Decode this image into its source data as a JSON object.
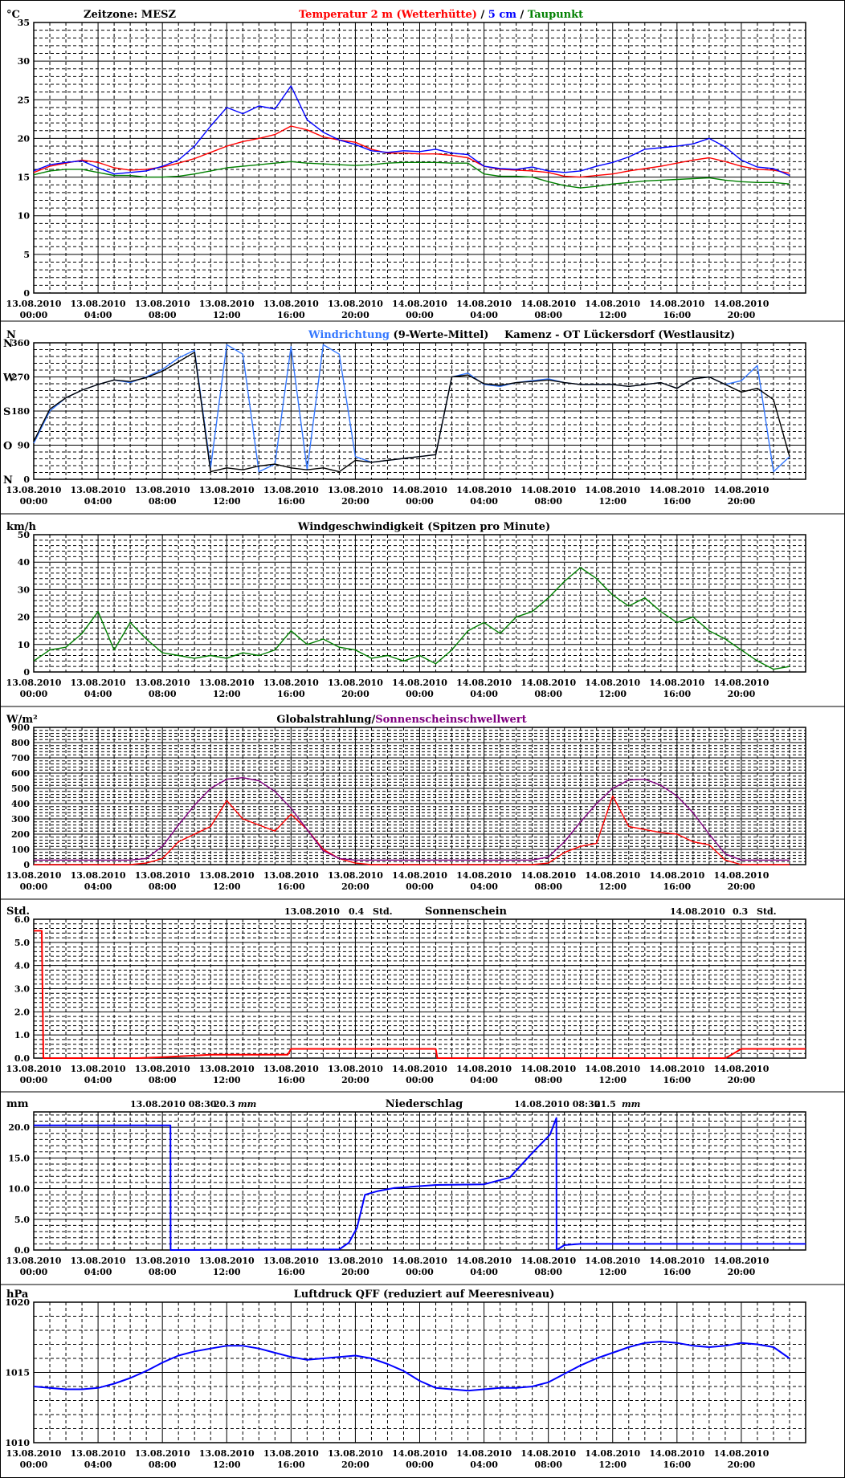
{
  "x_tick_labels": [
    [
      "13.08.2010",
      "00:00"
    ],
    [
      "13.08.2010",
      "04:00"
    ],
    [
      "13.08.2010",
      "08:00"
    ],
    [
      "13.08.2010",
      "12:00"
    ],
    [
      "13.08.2010",
      "16:00"
    ],
    [
      "13.08.2010",
      "20:00"
    ],
    [
      "14.08.2010",
      "00:00"
    ],
    [
      "14.08.2010",
      "04:00"
    ],
    [
      "14.08.2010",
      "08:00"
    ],
    [
      "14.08.2010",
      "12:00"
    ],
    [
      "14.08.2010",
      "16:00"
    ],
    [
      "14.08.2010",
      "20:00"
    ]
  ],
  "chart_data": [
    {
      "type": "line",
      "unit": "°C",
      "title_parts": [
        {
          "text": "Zeitzone: MESZ",
          "color": "#000000"
        },
        {
          "text": "Temperatur 2 m (Wetterhütte)",
          "color": "#ff0000"
        },
        {
          "text": "/",
          "color": "#000000"
        },
        {
          "text": "5 cm",
          "color": "#0000ff"
        },
        {
          "text": "/",
          "color": "#000000"
        },
        {
          "text": "Taupunkt",
          "color": "#008000"
        }
      ],
      "ylim": [
        0,
        35
      ],
      "y_ticks": [
        0,
        5,
        10,
        15,
        20,
        25,
        30,
        35
      ],
      "x": [
        0,
        1,
        2,
        3,
        4,
        5,
        6,
        7,
        8,
        9,
        10,
        11,
        12,
        13,
        14,
        15,
        16,
        17,
        18,
        19,
        20,
        21,
        22,
        23,
        24,
        25,
        26,
        27,
        28,
        29,
        30,
        31,
        32,
        33,
        34,
        35,
        36,
        37,
        38,
        39,
        40,
        41,
        42,
        43,
        44,
        45,
        46,
        47
      ],
      "series": [
        {
          "name": "Temperatur 2 m (Wetterhütte)",
          "color": "#ff0000",
          "values": [
            15.6,
            16.4,
            16.8,
            17.2,
            16.9,
            16.2,
            15.9,
            16.0,
            16.3,
            16.8,
            17.4,
            18.2,
            19.0,
            19.6,
            20.0,
            20.5,
            21.6,
            21.1,
            20.2,
            19.8,
            19.5,
            18.6,
            18.1,
            18.1,
            18.0,
            18.0,
            17.8,
            17.5,
            16.4,
            16.0,
            15.9,
            15.8,
            15.6,
            15.1,
            15.0,
            15.2,
            15.4,
            15.8,
            16.1,
            16.4,
            16.8,
            17.2,
            17.5,
            17.0,
            16.4,
            16.0,
            15.9,
            15.5
          ]
        },
        {
          "name": "5 cm",
          "color": "#0000ff",
          "values": [
            15.8,
            16.6,
            16.9,
            17.1,
            16.2,
            15.4,
            15.6,
            15.8,
            16.4,
            17.2,
            19.0,
            21.6,
            24.0,
            23.2,
            24.2,
            23.8,
            26.8,
            22.4,
            20.8,
            19.8,
            19.2,
            18.4,
            18.2,
            18.4,
            18.3,
            18.6,
            18.1,
            17.9,
            16.4,
            16.1,
            16.0,
            16.3,
            15.8,
            15.6,
            15.8,
            16.4,
            16.9,
            17.6,
            18.6,
            18.8,
            19.0,
            19.3,
            20.0,
            18.9,
            17.2,
            16.3,
            16.1,
            15.2
          ]
        },
        {
          "name": "Taupunkt",
          "color": "#008000",
          "values": [
            15.3,
            15.8,
            16.0,
            16.0,
            15.6,
            15.2,
            15.2,
            15.0,
            15.0,
            15.1,
            15.4,
            15.8,
            16.2,
            16.4,
            16.6,
            16.8,
            17.0,
            16.8,
            16.7,
            16.6,
            16.5,
            16.6,
            16.8,
            16.9,
            16.9,
            16.9,
            16.8,
            16.8,
            15.4,
            15.1,
            15.1,
            15.0,
            14.4,
            13.9,
            13.6,
            13.8,
            14.1,
            14.3,
            14.5,
            14.6,
            14.7,
            14.8,
            14.9,
            14.6,
            14.4,
            14.3,
            14.3,
            14.1
          ]
        }
      ]
    },
    {
      "type": "line",
      "unit": "N",
      "title_parts": [
        {
          "text": "Windrichtung",
          "color": "#3377ff"
        },
        {
          "text": "(9-Werte-Mittel)",
          "color": "#000000"
        },
        {
          "text": "Kamenz - OT Lückersdorf (Westlausitz)",
          "color": "#000000"
        }
      ],
      "ylim": [
        0,
        360
      ],
      "y_ticks": [
        0,
        90,
        180,
        270,
        360
      ],
      "y_dir_labels": [
        {
          "value": 360,
          "text": "N"
        },
        {
          "value": 270,
          "text": "W"
        },
        {
          "value": 180,
          "text": "S"
        },
        {
          "value": 90,
          "text": "O"
        },
        {
          "value": 0,
          "text": "N"
        }
      ],
      "x": [
        0,
        1,
        2,
        3,
        4,
        5,
        6,
        7,
        8,
        9,
        10,
        11,
        12,
        13,
        14,
        15,
        16,
        17,
        18,
        19,
        20,
        21,
        22,
        23,
        24,
        25,
        26,
        27,
        28,
        29,
        30,
        31,
        32,
        33,
        34,
        35,
        36,
        37,
        38,
        39,
        40,
        41,
        42,
        43,
        44,
        45,
        46,
        47
      ],
      "series": [
        {
          "name": "Windrichtung",
          "color": "#3377ff",
          "values": [
            95,
            180,
            215,
            235,
            250,
            262,
            255,
            270,
            290,
            320,
            340,
            30,
            355,
            330,
            20,
            40,
            350,
            25,
            355,
            330,
            60,
            45,
            50,
            55,
            60,
            65,
            270,
            280,
            250,
            245,
            255,
            260,
            265,
            255,
            250,
            250,
            250,
            245,
            250,
            255,
            240,
            265,
            270,
            250,
            260,
            300,
            20,
            60
          ]
        },
        {
          "name": "9-Werte-Mittel",
          "color": "#000000",
          "values": [
            100,
            185,
            215,
            235,
            250,
            262,
            258,
            268,
            285,
            310,
            335,
            20,
            30,
            25,
            35,
            40,
            30,
            25,
            30,
            20,
            50,
            45,
            50,
            55,
            60,
            65,
            270,
            275,
            252,
            248,
            255,
            258,
            262,
            255,
            250,
            250,
            250,
            245,
            250,
            255,
            240,
            265,
            270,
            250,
            230,
            240,
            210,
            60
          ]
        }
      ]
    },
    {
      "type": "line",
      "unit": "km/h",
      "title_parts": [
        {
          "text": "Windgeschwindigkeit (Spitzen pro Minute)",
          "color": "#000000"
        }
      ],
      "ylim": [
        0,
        50
      ],
      "y_ticks": [
        0,
        10,
        20,
        30,
        40,
        50
      ],
      "x": [
        0,
        1,
        2,
        3,
        4,
        5,
        6,
        7,
        8,
        9,
        10,
        11,
        12,
        13,
        14,
        15,
        16,
        17,
        18,
        19,
        20,
        21,
        22,
        23,
        24,
        25,
        26,
        27,
        28,
        29,
        30,
        31,
        32,
        33,
        34,
        35,
        36,
        37,
        38,
        39,
        40,
        41,
        42,
        43,
        44,
        45,
        46,
        47
      ],
      "series": [
        {
          "name": "Windgeschwindigkeit",
          "color": "#008000",
          "values": [
            4,
            8,
            9,
            14,
            22,
            8,
            18,
            12,
            7,
            6,
            5,
            6,
            5,
            7,
            6,
            8,
            15,
            10,
            12,
            9,
            8,
            5,
            6,
            4,
            6,
            3,
            8,
            15,
            18,
            14,
            20,
            22,
            27,
            33,
            38,
            34,
            28,
            24,
            27,
            22,
            18,
            20,
            15,
            12,
            8,
            4,
            1,
            2
          ]
        }
      ]
    },
    {
      "type": "line",
      "unit": "W/m²",
      "title_parts": [
        {
          "text": "Globalstrahlung/",
          "color": "#000000"
        },
        {
          "text": "Sonnenscheinschwellwert",
          "color": "#800080"
        }
      ],
      "ylim": [
        0,
        900
      ],
      "y_ticks": [
        0,
        100,
        200,
        300,
        400,
        500,
        600,
        700,
        800,
        900
      ],
      "x": [
        0,
        1,
        2,
        3,
        4,
        5,
        6,
        7,
        8,
        9,
        10,
        11,
        12,
        13,
        14,
        15,
        16,
        17,
        18,
        19,
        20,
        21,
        22,
        23,
        24,
        25,
        26,
        27,
        28,
        29,
        30,
        31,
        32,
        33,
        34,
        35,
        36,
        37,
        38,
        39,
        40,
        41,
        42,
        43,
        44,
        45,
        46,
        47
      ],
      "series": [
        {
          "name": "Globalstrahlung",
          "color": "#ff0000",
          "values": [
            0,
            0,
            0,
            0,
            0,
            0,
            0,
            10,
            40,
            150,
            200,
            250,
            420,
            300,
            260,
            220,
            330,
            230,
            100,
            40,
            10,
            0,
            0,
            0,
            0,
            0,
            0,
            0,
            0,
            0,
            0,
            0,
            10,
            80,
            120,
            140,
            450,
            250,
            230,
            210,
            200,
            150,
            130,
            30,
            0,
            0,
            0,
            0
          ]
        },
        {
          "name": "Sonnenscheinschwellwert",
          "color": "#800080",
          "values": [
            30,
            30,
            30,
            30,
            30,
            30,
            30,
            40,
            120,
            260,
            390,
            500,
            560,
            570,
            550,
            480,
            370,
            230,
            90,
            40,
            30,
            30,
            30,
            30,
            30,
            30,
            30,
            30,
            30,
            30,
            30,
            30,
            50,
            150,
            280,
            400,
            500,
            555,
            560,
            520,
            450,
            340,
            200,
            70,
            30,
            30,
            30,
            30
          ]
        }
      ]
    },
    {
      "type": "line",
      "unit": "Std.",
      "title_parts": [
        {
          "text": "Sonnenschein",
          "color": "#000000"
        }
      ],
      "annotations": [
        {
          "date": "13.08.2010",
          "value": "0.4",
          "unit": "Std."
        },
        {
          "date": "14.08.2010",
          "value": "0.3",
          "unit": "Std."
        }
      ],
      "ylim": [
        0,
        6
      ],
      "y_ticks": [
        0,
        1,
        2,
        3,
        4,
        5,
        6
      ],
      "y_tick_format": "fixed1",
      "x": [
        0,
        0.5,
        0.6,
        6.5,
        8.2,
        11,
        15.8,
        16,
        25,
        25.1,
        43,
        43.4,
        44,
        48
      ],
      "series": [
        {
          "name": "Sonnenschein",
          "color": "#ff0000",
          "values": [
            5.5,
            5.5,
            0,
            0,
            0.05,
            0.15,
            0.15,
            0.4,
            0.4,
            0,
            0,
            0.15,
            0.4,
            0.4
          ]
        }
      ]
    },
    {
      "type": "line",
      "unit": "mm",
      "title_parts": [
        {
          "text": "Niederschlag",
          "color": "#000000"
        }
      ],
      "annotations": [
        {
          "date": "13.08.2010 08:30",
          "value": "20.3",
          "unit": "mm"
        },
        {
          "date": "14.08.2010 08:30",
          "value": "21.5",
          "unit": "mm"
        }
      ],
      "ylim": [
        0,
        22.5
      ],
      "y_ticks": [
        0,
        5,
        10,
        15,
        20
      ],
      "y_tick_format": "fixed1",
      "x": [
        0,
        8.5,
        8.51,
        19,
        19.6,
        20.1,
        20.6,
        21.4,
        22.4,
        25,
        28,
        29.6,
        31,
        32.1,
        32.5,
        32.51,
        33,
        34,
        48
      ],
      "series": [
        {
          "name": "Niederschlag",
          "color": "#0000ff",
          "values": [
            20.3,
            20.3,
            0,
            0.1,
            1.2,
            3.6,
            9.0,
            9.6,
            10.1,
            10.6,
            10.7,
            11.8,
            15.8,
            18.8,
            21.5,
            0,
            0.8,
            1.0,
            1.0
          ]
        }
      ]
    },
    {
      "type": "line",
      "unit": "hPa",
      "title_parts": [
        {
          "text": "Luftdruck QFF (reduziert auf Meeresniveau)",
          "color": "#000000"
        }
      ],
      "ylim": [
        1010,
        1020
      ],
      "y_ticks": [
        1010,
        1015,
        1020
      ],
      "x": [
        0,
        1,
        2,
        3,
        4,
        5,
        6,
        7,
        8,
        9,
        10,
        11,
        12,
        13,
        14,
        15,
        16,
        17,
        18,
        19,
        20,
        21,
        22,
        23,
        24,
        25,
        26,
        27,
        28,
        29,
        30,
        31,
        32,
        33,
        34,
        35,
        36,
        37,
        38,
        39,
        40,
        41,
        42,
        43,
        44,
        45,
        46,
        47
      ],
      "series": [
        {
          "name": "Luftdruck QFF",
          "color": "#0000ff",
          "values": [
            1014.0,
            1013.9,
            1013.8,
            1013.8,
            1013.9,
            1014.2,
            1014.6,
            1015.1,
            1015.7,
            1016.2,
            1016.5,
            1016.7,
            1016.9,
            1016.9,
            1016.7,
            1016.4,
            1016.1,
            1015.9,
            1016.0,
            1016.1,
            1016.2,
            1016.0,
            1015.6,
            1015.1,
            1014.4,
            1013.9,
            1013.8,
            1013.7,
            1013.8,
            1013.9,
            1013.9,
            1014.0,
            1014.3,
            1014.9,
            1015.5,
            1016.0,
            1016.4,
            1016.8,
            1017.1,
            1017.2,
            1017.1,
            1016.9,
            1016.8,
            1016.9,
            1017.1,
            1017.0,
            1016.8,
            1016.0
          ]
        }
      ]
    }
  ]
}
